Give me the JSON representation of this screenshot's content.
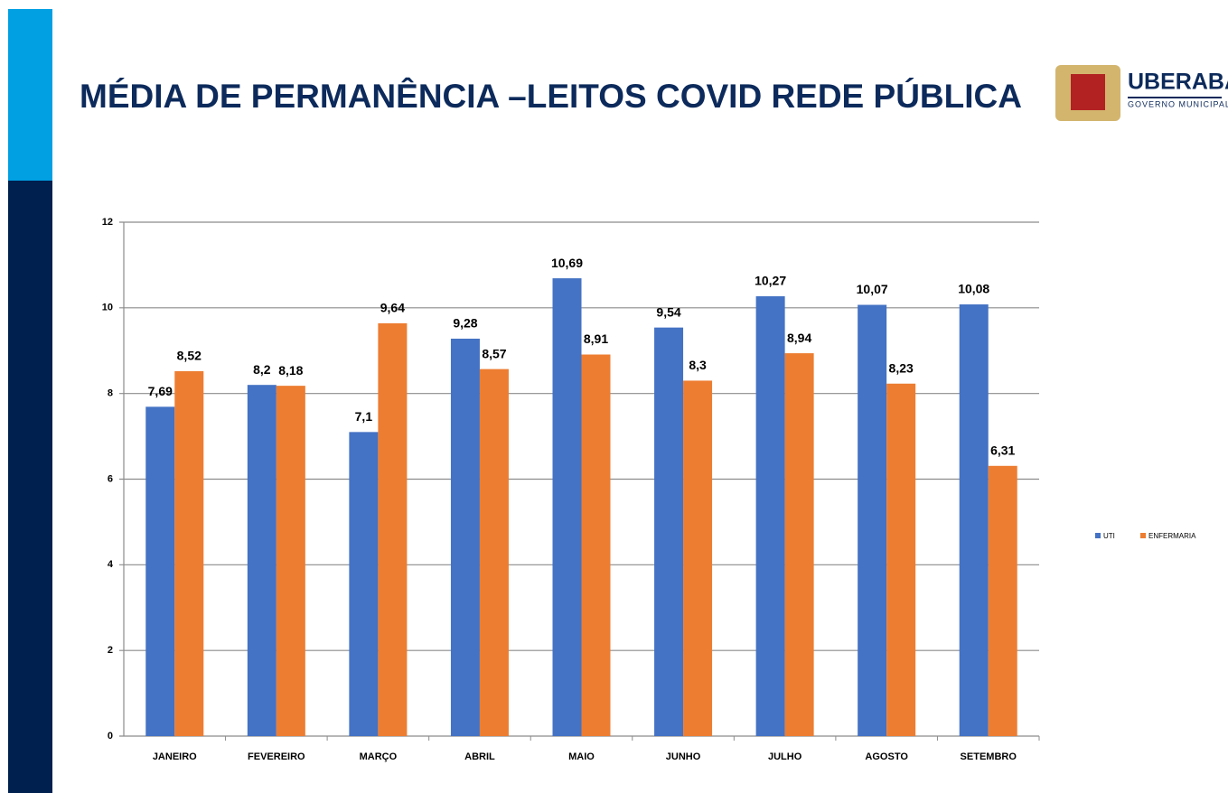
{
  "chart_data": {
    "type": "bar",
    "title": "MÉDIA DE PERMANÊNCIA –LEITOS COVID REDE PÚBLICA",
    "categories": [
      "JANEIRO",
      "FEVEREIRO",
      "MARÇO",
      "ABRIL",
      "MAIO",
      "JUNHO",
      "JULHO",
      "AGOSTO",
      "SETEMBRO"
    ],
    "series": [
      {
        "name": "UTI",
        "color": "#4472c4",
        "values": [
          7.69,
          8.2,
          7.1,
          9.28,
          10.69,
          9.54,
          10.27,
          10.07,
          10.08
        ],
        "value_labels": [
          "7,69",
          "8,2",
          "7,1",
          "9,28",
          "10,69",
          "9,54",
          "10,27",
          "10,07",
          "10,08"
        ]
      },
      {
        "name": "ENFERMARIA",
        "color": "#ed7d31",
        "values": [
          8.52,
          8.18,
          9.64,
          8.57,
          8.91,
          8.3,
          8.94,
          8.23,
          6.31
        ],
        "value_labels": [
          "8,52",
          "8,18",
          "9,64",
          "8,57",
          "8,91",
          "8,3",
          "8,94",
          "8,23",
          "6,31"
        ]
      }
    ],
    "ylim": [
      0,
      12
    ],
    "yticks": [
      0,
      2,
      4,
      6,
      8,
      10,
      12
    ],
    "grid": true,
    "legend": "right"
  },
  "logo": {
    "name": "UBERABA",
    "subtitle": "GOVERNO MUNICIPAL"
  }
}
